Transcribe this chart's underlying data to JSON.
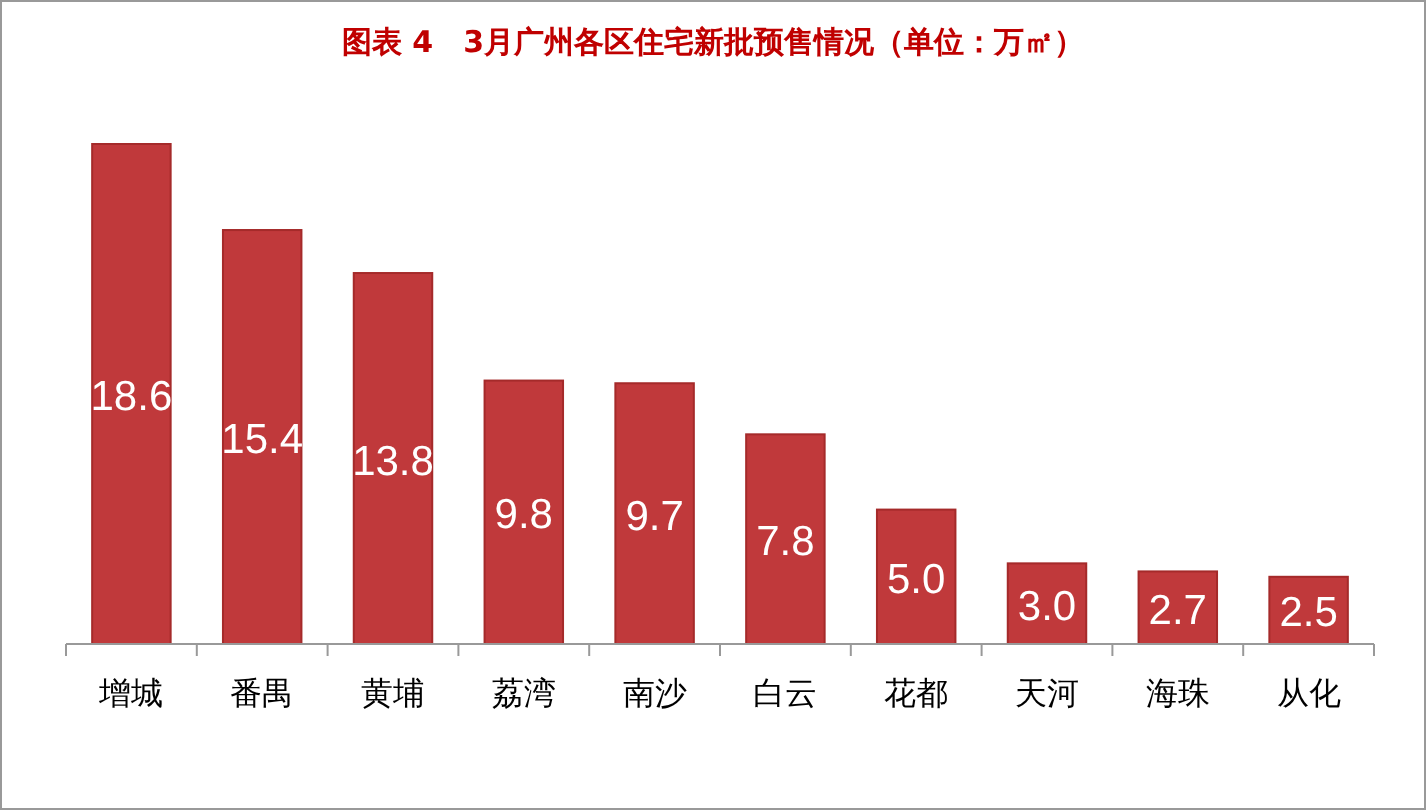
{
  "chart_data": {
    "type": "bar",
    "title": "图表 4　3月广州各区住宅新批预售情况（单位：万㎡）",
    "categories": [
      "增城",
      "番禺",
      "黄埔",
      "荔湾",
      "南沙",
      "白云",
      "花都",
      "天河",
      "海珠",
      "从化"
    ],
    "values": [
      18.6,
      15.4,
      13.8,
      9.8,
      9.7,
      7.8,
      5.0,
      3.0,
      2.7,
      2.5
    ],
    "value_labels": [
      "18.6",
      "15.4",
      "13.8",
      "9.8",
      "9.7",
      "7.8",
      "5.0",
      "3.0",
      "2.7",
      "2.5"
    ],
    "color": "#c0393b"
  }
}
